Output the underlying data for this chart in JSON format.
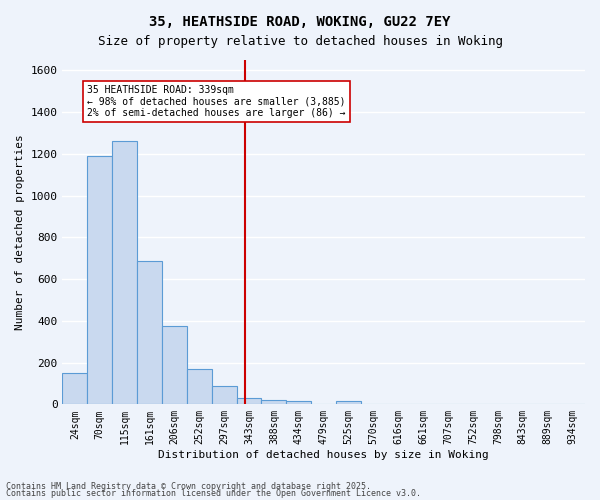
{
  "title1": "35, HEATHSIDE ROAD, WOKING, GU22 7EY",
  "title2": "Size of property relative to detached houses in Woking",
  "xlabel": "Distribution of detached houses by size in Woking",
  "ylabel": "Number of detached properties",
  "bin_labels": [
    "24sqm",
    "70sqm",
    "115sqm",
    "161sqm",
    "206sqm",
    "252sqm",
    "297sqm",
    "343sqm",
    "388sqm",
    "434sqm",
    "479sqm",
    "525sqm",
    "570sqm",
    "616sqm",
    "661sqm",
    "707sqm",
    "752sqm",
    "798sqm",
    "843sqm",
    "889sqm",
    "934sqm"
  ],
  "bar_values": [
    150,
    1190,
    1260,
    685,
    375,
    170,
    90,
    30,
    20,
    15,
    0,
    15,
    0,
    0,
    0,
    0,
    0,
    0,
    0,
    0,
    0
  ],
  "bar_color": "#c9d9ef",
  "bar_edge_color": "#5b9bd5",
  "vline_x_index": 6.85,
  "vline_color": "#cc0000",
  "annotation_text": "35 HEATHSIDE ROAD: 339sqm\n← 98% of detached houses are smaller (3,885)\n2% of semi-detached houses are larger (86) →",
  "annotation_box_color": "#ffffff",
  "annotation_box_edge_color": "#cc0000",
  "ylim": [
    0,
    1650
  ],
  "yticks": [
    0,
    200,
    400,
    600,
    800,
    1000,
    1200,
    1400,
    1600
  ],
  "footer1": "Contains HM Land Registry data © Crown copyright and database right 2025.",
  "footer2": "Contains public sector information licensed under the Open Government Licence v3.0.",
  "bg_color": "#eef3fb",
  "grid_color": "#ffffff"
}
